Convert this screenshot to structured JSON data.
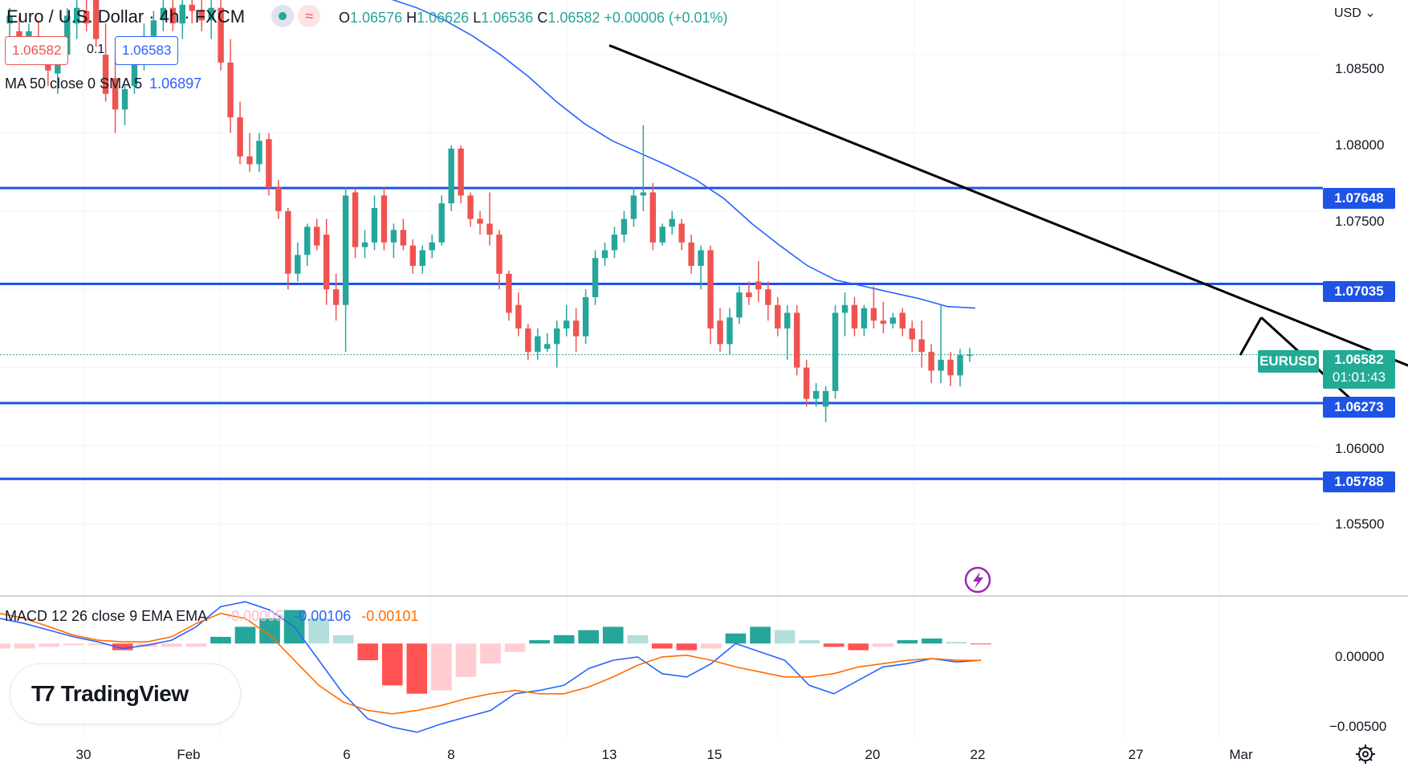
{
  "header": {
    "title": "Euro / U.S. Dollar · 4h · FXCM",
    "ohlc": {
      "o_label": "O",
      "o": "1.06576",
      "h_label": "H",
      "h": "1.06626",
      "l_label": "L",
      "l": "1.06536",
      "c_label": "C",
      "c": "1.06582",
      "change": "+0.00006 (+0.01%)"
    },
    "bid": "1.06582",
    "spread": "0.1",
    "ask": "1.06583",
    "ma_label": "MA 50 close 0 SMA 5",
    "ma_value": "1.06897",
    "currency": "USD"
  },
  "macd_header": {
    "label": "MACD 12 26 close 9 EMA EMA",
    "hist": "-0.00005",
    "macd": "-0.00106",
    "signal": "-0.00101"
  },
  "price_axis": {
    "ticks": [
      "1.08500",
      "1.08000",
      "1.07500",
      "1.06000",
      "1.05500"
    ],
    "levels": [
      "1.07648",
      "1.07035",
      "1.06273",
      "1.05788"
    ],
    "symbol": "EURUSD",
    "last_price": "1.06582",
    "countdown": "01:01:43"
  },
  "macd_axis": {
    "ticks": [
      "0.00000",
      "−0.00500"
    ]
  },
  "time_axis": {
    "labels": [
      "30",
      "Feb",
      "6",
      "8",
      "13",
      "15",
      "20",
      "22",
      "27",
      "Mar"
    ]
  },
  "logo": {
    "text": "TradingView"
  },
  "colors": {
    "up": "#26a69a",
    "down": "#ef5350",
    "level": "#1e53e5",
    "ma": "#2962ff",
    "macd": "#2962ff",
    "signal": "#ff6d00",
    "trend": "#000000"
  },
  "chart_data": [
    {
      "type": "candlestick",
      "title": "Euro / U.S. Dollar · 4h · FXCM",
      "ylim": [
        1.0505,
        1.0885
      ],
      "x_labels": [
        "30",
        "Feb",
        "6",
        "8",
        "13",
        "15",
        "20",
        "22",
        "27",
        "Mar"
      ],
      "ohlc": [
        [
          1.087,
          1.088,
          1.0855,
          1.0875
        ],
        [
          1.0865,
          1.0875,
          1.085,
          1.086
        ],
        [
          1.0855,
          1.087,
          1.0845,
          1.0865
        ],
        [
          1.0862,
          1.0872,
          1.085,
          1.0852
        ],
        [
          1.0848,
          1.086,
          1.083,
          1.084
        ],
        [
          1.0838,
          1.085,
          1.0825,
          1.0845
        ],
        [
          1.085,
          1.088,
          1.0845,
          1.0875
        ],
        [
          1.087,
          1.0885,
          1.086,
          1.088
        ],
        [
          1.0878,
          1.0885,
          1.0865,
          1.087
        ],
        [
          1.0885,
          1.0885,
          1.0855,
          1.086
        ],
        [
          1.085,
          1.087,
          1.082,
          1.0825
        ],
        [
          1.0835,
          1.085,
          1.08,
          1.0815
        ],
        [
          1.0815,
          1.083,
          1.0805,
          1.0828
        ],
        [
          1.083,
          1.0855,
          1.0825,
          1.085
        ],
        [
          1.085,
          1.087,
          1.084,
          1.0862
        ],
        [
          1.0862,
          1.0878,
          1.0852,
          1.0872
        ],
        [
          1.0872,
          1.0885,
          1.0865,
          1.088
        ],
        [
          1.088,
          1.0885,
          1.0865,
          1.087
        ],
        [
          1.087,
          1.0885,
          1.086,
          1.0882
        ],
        [
          1.0882,
          1.0885,
          1.087,
          1.0878
        ],
        [
          1.0878,
          1.0885,
          1.0865,
          1.0872
        ],
        [
          1.0872,
          1.0885,
          1.086,
          1.088
        ],
        [
          1.088,
          1.0885,
          1.084,
          1.0845
        ],
        [
          1.0845,
          1.086,
          1.08,
          1.081
        ],
        [
          1.081,
          1.082,
          1.078,
          1.0785
        ],
        [
          1.0785,
          1.08,
          1.0775,
          1.078
        ],
        [
          1.078,
          1.08,
          1.0775,
          1.0795
        ],
        [
          1.0796,
          1.08,
          1.076,
          1.0765
        ],
        [
          1.0765,
          1.077,
          1.0745,
          1.075
        ],
        [
          1.075,
          1.0752,
          1.07,
          1.071
        ],
        [
          1.071,
          1.073,
          1.0705,
          1.0722
        ],
        [
          1.0722,
          1.0742,
          1.0715,
          1.074
        ],
        [
          1.074,
          1.0745,
          1.0725,
          1.0728
        ],
        [
          1.0735,
          1.0745,
          1.069,
          1.07
        ],
        [
          1.07,
          1.071,
          1.068,
          1.069
        ],
        [
          1.069,
          1.0765,
          1.066,
          1.076
        ],
        [
          1.0762,
          1.0765,
          1.072,
          1.0727
        ],
        [
          1.0727,
          1.0738,
          1.072,
          1.073
        ],
        [
          1.073,
          1.076,
          1.0725,
          1.0752
        ],
        [
          1.076,
          1.0765,
          1.0725,
          1.073
        ],
        [
          1.073,
          1.0742,
          1.072,
          1.0738
        ],
        [
          1.0738,
          1.0745,
          1.0725,
          1.0728
        ],
        [
          1.0728,
          1.0732,
          1.071,
          1.0715
        ],
        [
          1.0715,
          1.0728,
          1.071,
          1.0725
        ],
        [
          1.0725,
          1.0735,
          1.072,
          1.073
        ],
        [
          1.073,
          1.076,
          1.0728,
          1.0755
        ],
        [
          1.0755,
          1.0792,
          1.075,
          1.079
        ],
        [
          1.079,
          1.0792,
          1.0755,
          1.076
        ],
        [
          1.076,
          1.0762,
          1.074,
          1.0745
        ],
        [
          1.0745,
          1.075,
          1.0735,
          1.0742
        ],
        [
          1.0742,
          1.0762,
          1.0728,
          1.0735
        ],
        [
          1.0735,
          1.0738,
          1.07,
          1.071
        ],
        [
          1.071,
          1.0712,
          1.068,
          1.0685
        ],
        [
          1.069,
          1.0698,
          1.067,
          1.0675
        ],
        [
          1.0675,
          1.0678,
          1.0655,
          1.066
        ],
        [
          1.066,
          1.0675,
          1.0655,
          1.067
        ],
        [
          1.0662,
          1.0672,
          1.066,
          1.0665
        ],
        [
          1.0665,
          1.068,
          1.065,
          1.0675
        ],
        [
          1.0675,
          1.069,
          1.067,
          1.068
        ],
        [
          1.068,
          1.0688,
          1.066,
          1.067
        ],
        [
          1.067,
          1.07,
          1.0665,
          1.0695
        ],
        [
          1.0695,
          1.0725,
          1.069,
          1.072
        ],
        [
          1.072,
          1.073,
          1.0715,
          1.0725
        ],
        [
          1.0725,
          1.074,
          1.072,
          1.0735
        ],
        [
          1.0735,
          1.075,
          1.073,
          1.0745
        ],
        [
          1.0745,
          1.0765,
          1.074,
          1.076
        ],
        [
          1.076,
          1.0805,
          1.075,
          1.0762
        ],
        [
          1.0762,
          1.0768,
          1.0725,
          1.073
        ],
        [
          1.073,
          1.0742,
          1.0728,
          1.074
        ],
        [
          1.074,
          1.075,
          1.0735,
          1.0745
        ],
        [
          1.0742,
          1.0745,
          1.0725,
          1.073
        ],
        [
          1.073,
          1.0735,
          1.071,
          1.0715
        ],
        [
          1.0715,
          1.0728,
          1.07,
          1.0725
        ],
        [
          1.0725,
          1.0728,
          1.0665,
          1.0675
        ],
        [
          1.068,
          1.0688,
          1.066,
          1.0665
        ],
        [
          1.0665,
          1.0688,
          1.0658,
          1.0682
        ],
        [
          1.0682,
          1.0702,
          1.0678,
          1.0698
        ],
        [
          1.0698,
          1.0705,
          1.069,
          1.0695
        ],
        [
          1.0705,
          1.0718,
          1.0692,
          1.07
        ],
        [
          1.07,
          1.0705,
          1.068,
          1.069
        ],
        [
          1.069,
          1.0695,
          1.067,
          1.0675
        ],
        [
          1.0675,
          1.069,
          1.0655,
          1.0685
        ],
        [
          1.0685,
          1.069,
          1.0645,
          1.065
        ],
        [
          1.065,
          1.0655,
          1.0625,
          1.063
        ],
        [
          1.063,
          1.064,
          1.0625,
          1.0635
        ],
        [
          1.0625,
          1.0638,
          1.0615,
          1.0635
        ],
        [
          1.0635,
          1.069,
          1.063,
          1.0685
        ],
        [
          1.0685,
          1.0698,
          1.067,
          1.069
        ],
        [
          1.069,
          1.0695,
          1.067,
          1.0675
        ],
        [
          1.0675,
          1.069,
          1.067,
          1.0688
        ],
        [
          1.0688,
          1.0702,
          1.0675,
          1.068
        ],
        [
          1.068,
          1.0692,
          1.0672,
          1.0678
        ],
        [
          1.0678,
          1.0685,
          1.0675,
          1.0682
        ],
        [
          1.0685,
          1.0688,
          1.067,
          1.0675
        ],
        [
          1.0675,
          1.068,
          1.066,
          1.0668
        ],
        [
          1.0668,
          1.068,
          1.065,
          1.066
        ],
        [
          1.066,
          1.0665,
          1.064,
          1.0648
        ],
        [
          1.0648,
          1.069,
          1.064,
          1.0655
        ],
        [
          1.0655,
          1.066,
          1.0638,
          1.0645
        ],
        [
          1.0645,
          1.0662,
          1.0638,
          1.0658
        ],
        [
          1.06576,
          1.06626,
          1.06536,
          1.06582
        ]
      ],
      "ma50": [
        1.0895,
        1.0893,
        1.089,
        1.0886,
        1.088,
        1.0872,
        1.0862,
        1.085,
        1.0836,
        1.082,
        1.0806,
        1.0795,
        1.0787,
        1.0779,
        1.077,
        1.0758,
        1.0742,
        1.0728,
        1.0715,
        1.0706,
        1.0702,
        1.0698,
        1.0694,
        1.0689,
        1.0688
      ],
      "levels": [
        1.07648,
        1.07035,
        1.06273,
        1.05788
      ],
      "trendlines": [
        {
          "from": [
            10,
            1.0856
          ],
          "to": [
            27,
            1.0627
          ]
        },
        {
          "from": [
            22,
            1.0658
          ],
          "to": [
            22.4,
            1.0682
          ]
        },
        {
          "from": [
            22.4,
            1.0682
          ],
          "to": [
            24.1,
            1.063
          ]
        }
      ]
    },
    {
      "type": "macd",
      "title": "MACD 12 26 close 9 EMA EMA",
      "ylim": [
        -0.0057,
        0.0027
      ],
      "macd": [
        0.0015,
        0.0012,
        0.0008,
        0.0004,
        0.0001,
        -0.0003,
        -0.0001,
        0.0002,
        0.001,
        0.0022,
        0.0025,
        0.002,
        0.001,
        -0.001,
        -0.003,
        -0.0045,
        -0.005,
        -0.0053,
        -0.0048,
        -0.0044,
        -0.004,
        -0.003,
        -0.0028,
        -0.0025,
        -0.0015,
        -0.001,
        -0.0008,
        -0.0018,
        -0.002,
        -0.0012,
        0.0,
        -0.0005,
        -0.001,
        -0.0025,
        -0.003,
        -0.0022,
        -0.0014,
        -0.0012,
        -0.0009,
        -0.0011,
        -0.001
      ],
      "signal": [
        0.0018,
        0.0015,
        0.001,
        0.0005,
        0.0002,
        0.0001,
        0.0001,
        0.0004,
        0.0012,
        0.0018,
        0.0015,
        0.0005,
        -0.001,
        -0.0025,
        -0.0035,
        -0.004,
        -0.0042,
        -0.004,
        -0.0037,
        -0.0033,
        -0.003,
        -0.0028,
        -0.003,
        -0.003,
        -0.0026,
        -0.002,
        -0.0013,
        -0.0008,
        -0.0007,
        -0.001,
        -0.0014,
        -0.0017,
        -0.002,
        -0.002,
        -0.0018,
        -0.0014,
        -0.0012,
        -0.001,
        -0.0009,
        -0.001,
        -0.00101
      ],
      "histogram": [
        -0.0003,
        -0.0003,
        -0.0002,
        -0.0001,
        -0.0001,
        -0.0004,
        -0.0002,
        -0.0002,
        -0.0002,
        0.0004,
        0.001,
        0.0015,
        0.002,
        0.0015,
        0.0005,
        -0.001,
        -0.0025,
        -0.003,
        -0.0028,
        -0.002,
        -0.0012,
        -0.0005,
        0.0002,
        0.0005,
        0.0008,
        0.001,
        0.0005,
        -0.0003,
        -0.0004,
        -0.0003,
        0.0006,
        0.001,
        0.0008,
        0.0002,
        -0.0002,
        -0.0004,
        -0.0002,
        0.0002,
        0.0003,
        0.0001,
        -5e-05
      ]
    }
  ]
}
